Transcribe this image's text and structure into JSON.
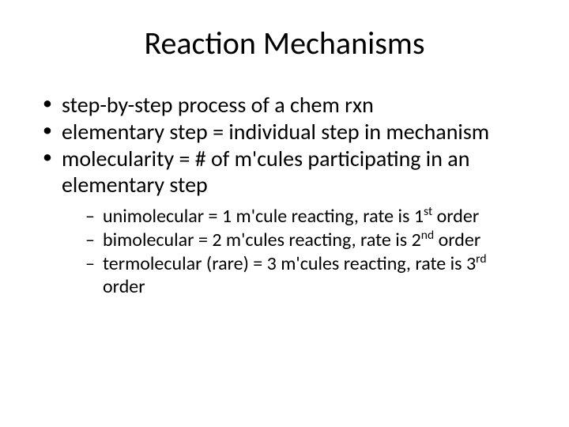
{
  "title": "Reaction Mechanisms",
  "bullets": {
    "b1": "step-by-step process of a chem rxn",
    "b2": "elementary step = individual step in mechanism",
    "b3": "molecularity = # of m'cules participating in an elementary step",
    "sub1_pre": "unimolecular = 1 m'cule reacting, rate is 1",
    "sub1_sup": "st",
    "sub1_post": " order",
    "sub2_pre": "bimolecular = 2 m'cules reacting, rate is 2",
    "sub2_sup": "nd",
    "sub2_post": " order",
    "sub3_pre": "termolecular (rare) = 3 m'cules reacting, rate is 3",
    "sub3_sup": "rd",
    "sub3_post": " order"
  },
  "style": {
    "background_color": "#ffffff",
    "text_color": "#000000",
    "title_fontsize": 40,
    "level1_fontsize": 28,
    "level2_fontsize": 24,
    "font_family": "Calibri"
  }
}
